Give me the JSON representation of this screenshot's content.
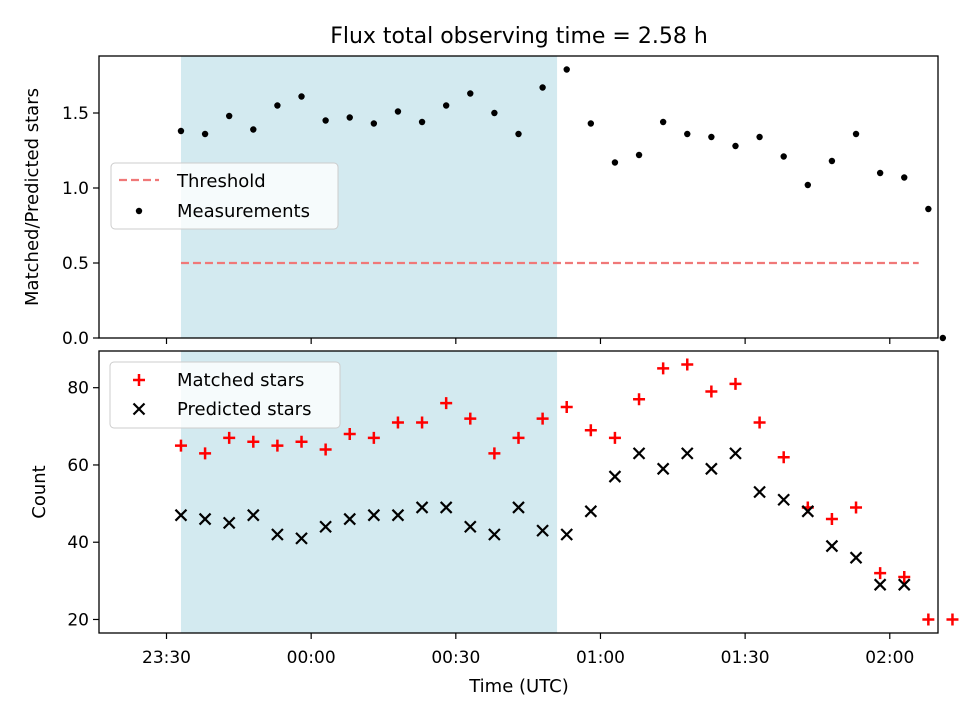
{
  "chart_data": {
    "title": "Flux total observing time = 2.58 h",
    "xlabel": "Time (UTC)",
    "x_tick_labels": [
      "23:30",
      "00:00",
      "00:30",
      "01:00",
      "01:30",
      "02:00"
    ],
    "x_ticks_minutes": [
      -30,
      0,
      30,
      60,
      90,
      120
    ],
    "x_range_minutes": [
      -44,
      130
    ],
    "shaded_interval_minutes": [
      -27,
      51
    ],
    "colors": {
      "shade": "#d3eaf0",
      "measurement": "#000000",
      "threshold": "#f07878",
      "matched": "#ff0000",
      "predicted": "#000000"
    },
    "panels": [
      {
        "id": "ratio",
        "type": "scatter",
        "ylabel": "Matched/Predicted stars",
        "ylim": [
          0,
          1.88
        ],
        "y_ticks": [
          0.0,
          0.5,
          1.0,
          1.5
        ],
        "y_tick_labels": [
          "0.0",
          "0.5",
          "1.0",
          "1.5"
        ],
        "x_tick_marks_only": true,
        "legend": [
          "Threshold",
          "Measurements"
        ],
        "threshold": {
          "name": "Threshold",
          "value": 0.5,
          "x_start_min": -27,
          "x_end_min": 126
        },
        "series": [
          {
            "name": "Measurements",
            "x_minutes": [
              -27,
              -22,
              -17,
              -12,
              -7,
              -2,
              3,
              8,
              13,
              18,
              23,
              28,
              33,
              38,
              43,
              48,
              53,
              58,
              63,
              68,
              73,
              78,
              83,
              88,
              93,
              98,
              103,
              108,
              113,
              118,
              123,
              128
            ],
            "values": [
              1.38,
              1.36,
              1.48,
              1.39,
              1.55,
              1.61,
              1.45,
              1.47,
              1.43,
              1.51,
              1.44,
              1.55,
              1.63,
              1.5,
              1.36,
              1.67,
              1.79,
              1.43,
              1.17,
              1.22,
              1.44,
              1.36,
              1.34,
              1.28,
              1.34,
              1.21,
              1.02,
              1.18,
              1.36,
              1.1,
              1.07,
              0.86
            ]
          }
        ]
      },
      {
        "id": "counts",
        "type": "scatter",
        "ylabel": "Count",
        "ylim": [
          16.5,
          89.5
        ],
        "y_ticks": [
          20,
          40,
          60,
          80
        ],
        "y_tick_labels": [
          "20",
          "40",
          "60",
          "80"
        ],
        "legend": [
          "Matched stars",
          "Predicted stars"
        ],
        "series": [
          {
            "name": "Matched stars",
            "marker": "plus",
            "x_minutes": [
              -27,
              -22,
              -17,
              -12,
              -7,
              -2,
              3,
              8,
              13,
              18,
              23,
              28,
              33,
              38,
              43,
              48,
              53,
              58,
              63,
              68,
              73,
              78,
              83,
              88,
              93,
              98,
              103,
              108,
              113,
              118,
              123,
              128
            ],
            "values": [
              65,
              63,
              67,
              66,
              65,
              66,
              64,
              68,
              67,
              71,
              71,
              76,
              72,
              63,
              67,
              72,
              75,
              69,
              67,
              77,
              85,
              86,
              79,
              81,
              71,
              62,
              49,
              46,
              49,
              32,
              31,
              20
            ]
          },
          {
            "name": "Predicted stars",
            "marker": "x",
            "x_minutes": [
              -27,
              -22,
              -17,
              -12,
              -7,
              -2,
              3,
              8,
              13,
              18,
              23,
              28,
              33,
              38,
              43,
              48,
              53,
              58,
              63,
              68,
              73,
              78,
              83,
              88,
              93,
              98,
              103,
              108,
              113,
              118,
              123
            ],
            "values": [
              47,
              46,
              45,
              47,
              42,
              41,
              44,
              46,
              47,
              47,
              49,
              49,
              44,
              42,
              49,
              43,
              42,
              48,
              57,
              63,
              59,
              63,
              59,
              63,
              53,
              51,
              48,
              39,
              36,
              29,
              29
            ]
          }
        ]
      }
    ]
  }
}
